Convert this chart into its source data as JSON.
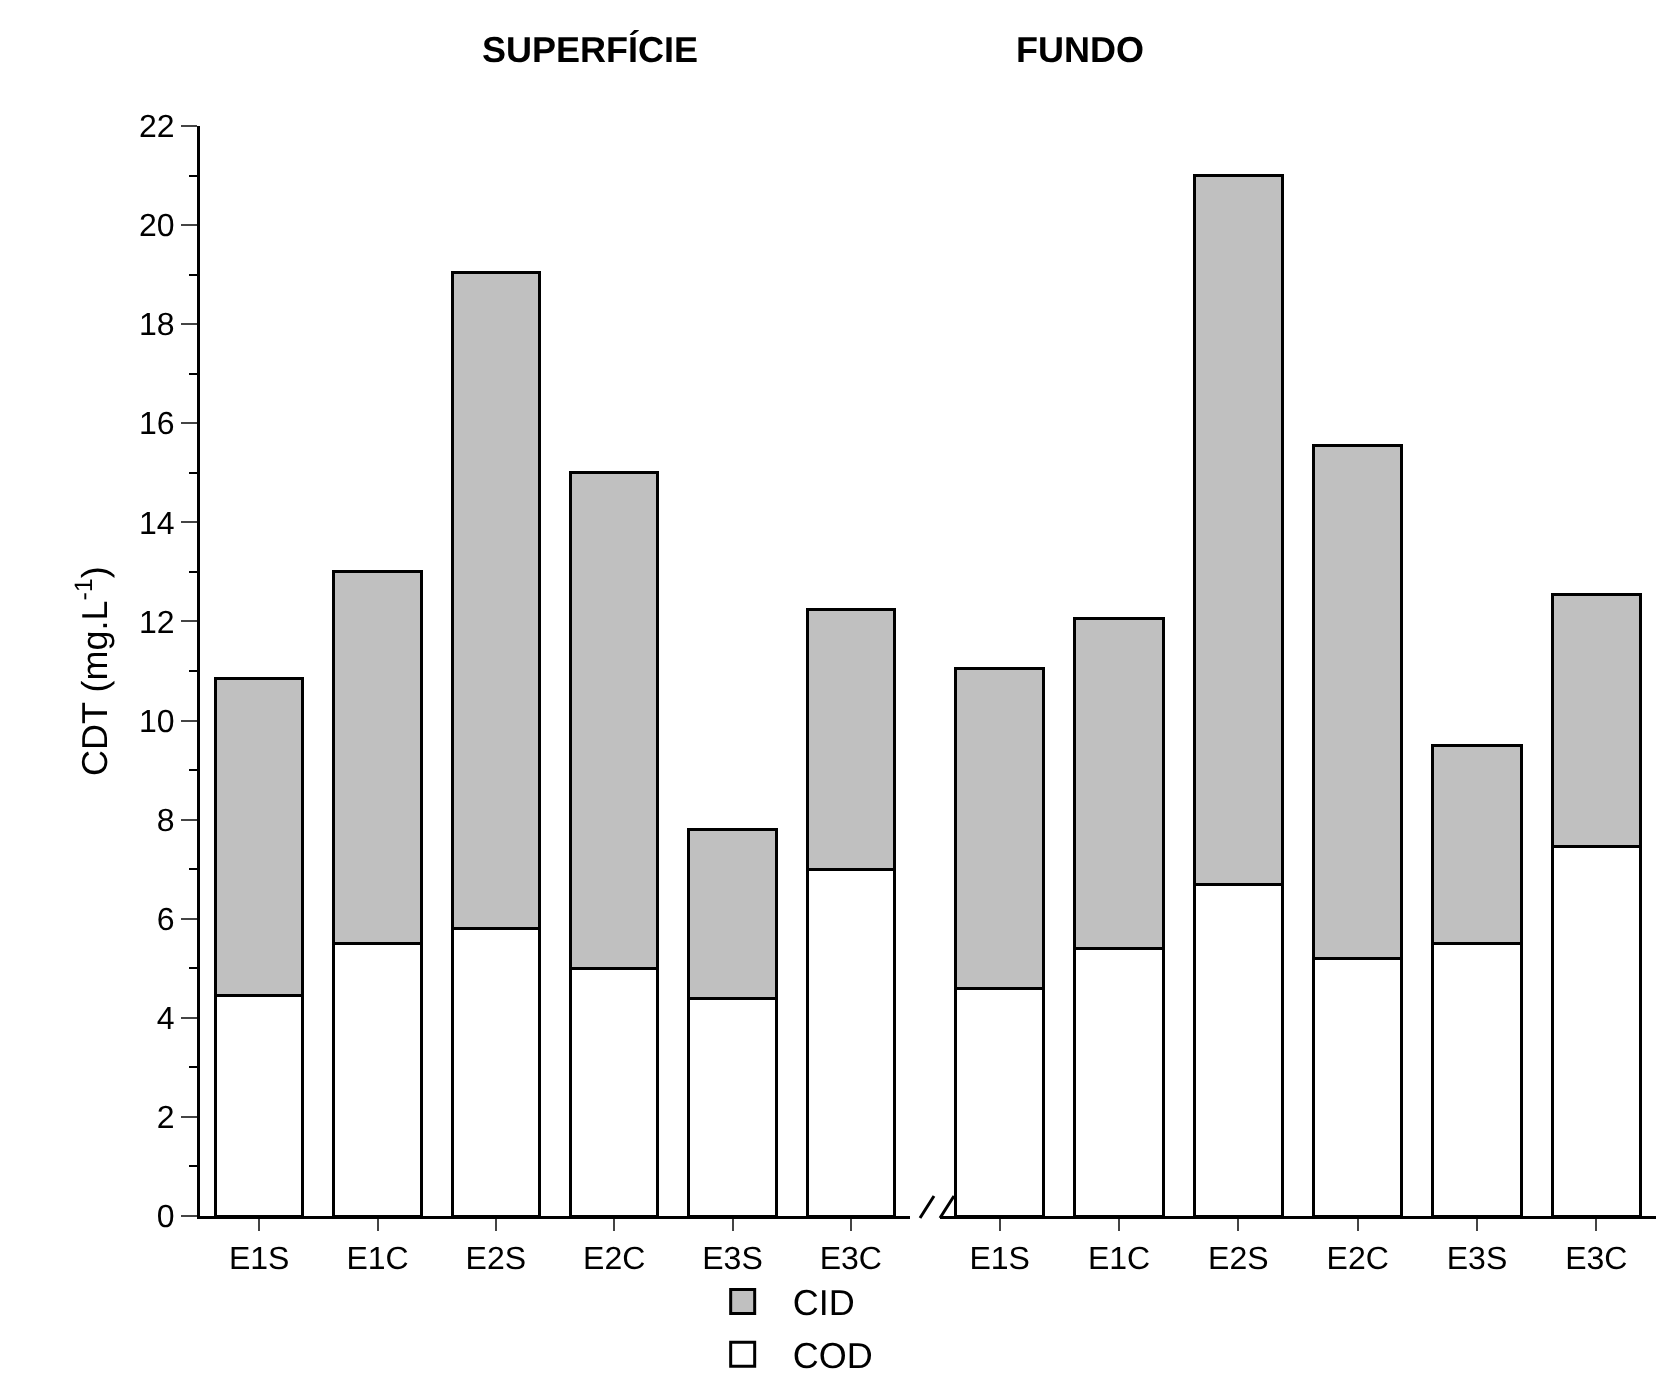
{
  "chart_data": [
    {
      "type": "bar",
      "title": "SUPERFÍCIE",
      "ylabel": "CDT (mg.L$^{-1}$)",
      "categories": [
        "E1S",
        "E1C",
        "E2S",
        "E2C",
        "E3S",
        "E3C"
      ],
      "stacked": true,
      "ylim": [
        0,
        22
      ],
      "yticks": [
        0,
        2,
        4,
        6,
        8,
        10,
        12,
        14,
        16,
        18,
        20,
        22
      ],
      "legend": "bottom",
      "series": [
        {
          "name": "COD",
          "color": "#ffffff",
          "values": [
            4.45,
            5.5,
            5.8,
            5.0,
            4.4,
            7.0
          ]
        },
        {
          "name": "CID",
          "color": "#c0c0c0",
          "values": [
            6.4,
            7.5,
            13.25,
            10.0,
            3.4,
            5.25
          ]
        }
      ]
    },
    {
      "type": "bar",
      "title": "FUNDO",
      "categories": [
        "E1S",
        "E1C",
        "E2S",
        "E2C",
        "E3S",
        "E3C"
      ],
      "stacked": true,
      "ylim": [
        0,
        22
      ],
      "yticks": [
        0,
        2,
        4,
        6,
        8,
        10,
        12,
        14,
        16,
        18,
        20,
        22
      ],
      "tick_labels": "x",
      "series": [
        {
          "color": "#ffffff",
          "values": [
            4.6,
            5.4,
            6.7,
            5.2,
            5.5,
            7.45
          ]
        },
        {
          "color": "#c0c0c0",
          "values": [
            6.45,
            6.65,
            14.3,
            10.35,
            4.0,
            5.1
          ]
        }
      ]
    }
  ]
}
